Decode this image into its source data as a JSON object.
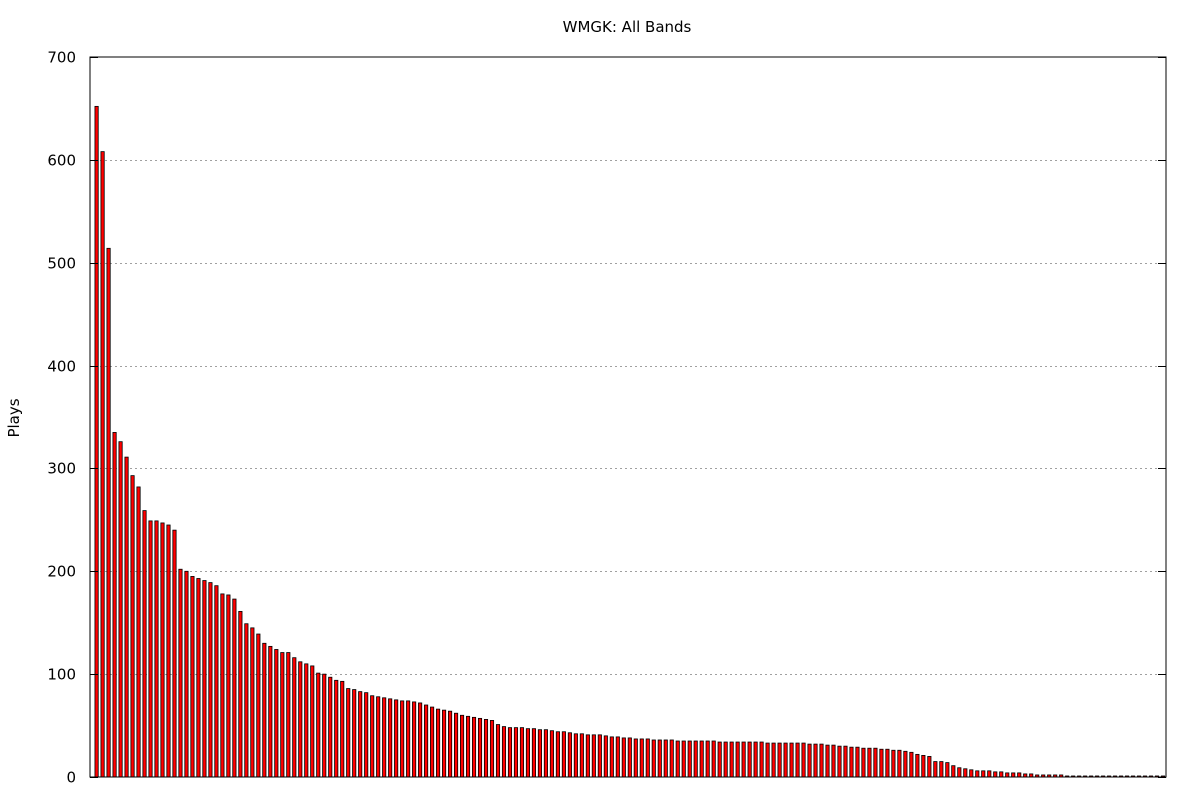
{
  "chart_data": {
    "type": "bar",
    "title": "WMGK: All Bands",
    "xlabel": "",
    "ylabel": "Plays",
    "ylim": [
      0,
      700
    ],
    "yticks": [
      0,
      100,
      200,
      300,
      400,
      500,
      600,
      700
    ],
    "grid": "horizontal dotted",
    "bar_color": "#ff0000",
    "bar_edge_color": "#000000",
    "values": [
      652,
      608,
      514,
      335,
      326,
      311,
      293,
      282,
      259,
      249,
      249,
      247,
      245,
      240,
      202,
      200,
      195,
      193,
      191,
      189,
      186,
      178,
      177,
      173,
      161,
      149,
      145,
      139,
      130,
      127,
      124,
      121,
      121,
      116,
      112,
      110,
      108,
      101,
      100,
      97,
      94,
      93,
      86,
      85,
      83,
      82,
      79,
      78,
      77,
      76,
      75,
      74,
      74,
      73,
      72,
      70,
      68,
      66,
      65,
      64,
      62,
      60,
      59,
      58,
      57,
      56,
      55,
      51,
      49,
      48,
      48,
      48,
      47,
      47,
      46,
      46,
      45,
      44,
      44,
      43,
      42,
      42,
      41,
      41,
      41,
      40,
      39,
      39,
      38,
      38,
      37,
      37,
      37,
      36,
      36,
      36,
      36,
      35,
      35,
      35,
      35,
      35,
      35,
      35,
      34,
      34,
      34,
      34,
      34,
      34,
      34,
      34,
      33,
      33,
      33,
      33,
      33,
      33,
      33,
      32,
      32,
      32,
      31,
      31,
      30,
      30,
      29,
      29,
      28,
      28,
      28,
      27,
      27,
      26,
      26,
      25,
      24,
      22,
      21,
      20,
      15,
      15,
      14,
      11,
      9,
      8,
      7,
      6,
      6,
      6,
      5,
      5,
      4,
      4,
      4,
      3,
      3,
      2,
      2,
      2,
      2,
      2,
      1,
      1,
      1,
      1,
      1,
      1,
      1,
      1,
      1,
      1,
      1,
      1,
      1,
      1,
      1,
      1,
      1
    ]
  }
}
